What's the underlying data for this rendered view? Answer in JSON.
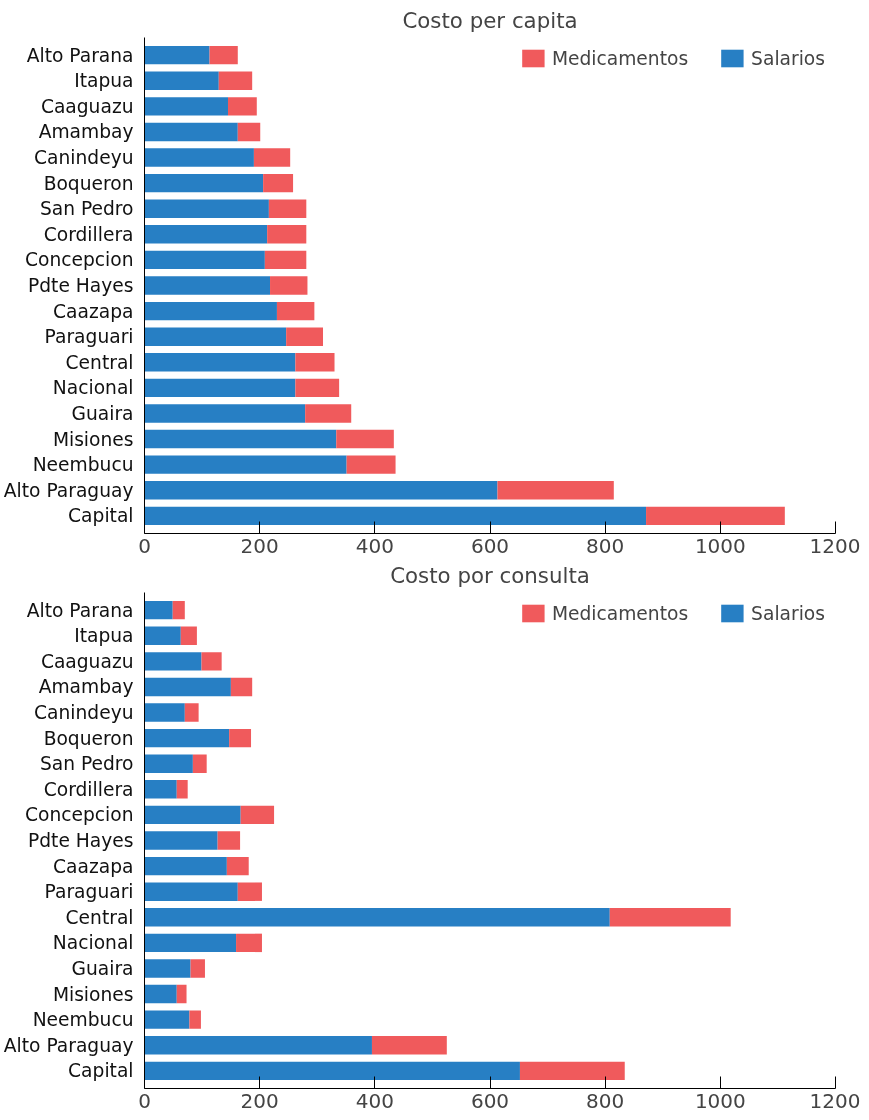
{
  "chart_data": [
    {
      "type": "bar",
      "title": "Costo per capita",
      "orientation": "horizontal",
      "stacked": true,
      "legend": "top right",
      "grid": false,
      "categories": [
        "Alto Parana",
        "Itapua",
        "Caaguazu",
        "Amambay",
        "Canindeyu",
        "Boqueron",
        "San Pedro",
        "Cordillera",
        "Concepcion",
        "Pdte Hayes",
        "Caazapa",
        "Paraguari",
        "Central",
        "Nacional",
        "Guaira",
        "Misiones",
        "Neembucu",
        "Alto Paraguay",
        "Capital"
      ],
      "xlim": [
        0,
        1200
      ],
      "xticks": [
        0,
        200,
        400,
        600,
        800,
        1000,
        1200
      ],
      "series": [
        {
          "name": "Salarios",
          "color": "#277fc4",
          "values": [
            113,
            129,
            145,
            162,
            190,
            206,
            216,
            213,
            209,
            218,
            230,
            246,
            262,
            262,
            279,
            333,
            351,
            613,
            871
          ]
        },
        {
          "name": "Medicamentos",
          "color": "#f05a5c",
          "values": [
            49,
            58,
            50,
            39,
            63,
            52,
            65,
            68,
            72,
            65,
            65,
            64,
            68,
            76,
            80,
            100,
            85,
            202,
            241
          ]
        }
      ]
    },
    {
      "type": "bar",
      "title": "Costo por consulta",
      "orientation": "horizontal",
      "stacked": true,
      "legend": "top right",
      "grid": false,
      "categories": [
        "Alto Parana",
        "Itapua",
        "Caaguazu",
        "Amambay",
        "Canindeyu",
        "Boqueron",
        "San Pedro",
        "Cordillera",
        "Concepcion",
        "Pdte Hayes",
        "Caazapa",
        "Paraguari",
        "Central",
        "Nacional",
        "Guaira",
        "Misiones",
        "Neembucu",
        "Alto Paraguay",
        "Capital"
      ],
      "xlim": [
        0,
        1200
      ],
      "xticks": [
        0,
        200,
        400,
        600,
        800,
        1000,
        1200
      ],
      "series": [
        {
          "name": "Salarios",
          "color": "#277fc4",
          "values": [
            49,
            63,
            99,
            150,
            70,
            147,
            84,
            56,
            167,
            127,
            143,
            162,
            808,
            159,
            80,
            56,
            78,
            395,
            652
          ]
        },
        {
          "name": "Medicamentos",
          "color": "#f05a5c",
          "values": [
            21,
            28,
            35,
            37,
            24,
            38,
            24,
            19,
            58,
            39,
            38,
            42,
            210,
            45,
            25,
            17,
            20,
            130,
            182
          ]
        }
      ]
    }
  ]
}
